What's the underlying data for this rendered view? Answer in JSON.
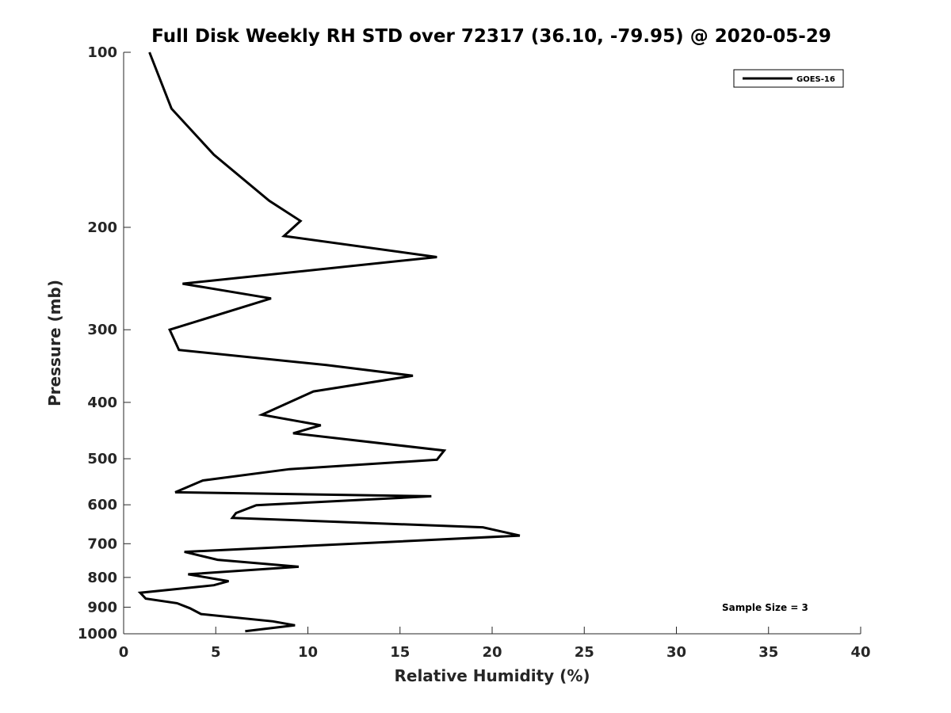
{
  "chart_data": {
    "type": "line",
    "title": "Full Disk Weekly RH STD over 72317 (36.10, -79.95) @ 2020-05-29",
    "xlabel": "Relative Humidity (%)",
    "ylabel": "Pressure (mb)",
    "xlim": [
      0,
      40
    ],
    "ylim": [
      100,
      1000
    ],
    "y_scale": "log",
    "y_reversed": true,
    "x_ticks": [
      "0",
      "5",
      "10",
      "15",
      "20",
      "25",
      "30",
      "35",
      "40"
    ],
    "y_ticks": [
      "100",
      "200",
      "300",
      "400",
      "500",
      "600",
      "700",
      "800",
      "900",
      "1000"
    ],
    "grid": false,
    "legend": {
      "position": "top-right",
      "entries": [
        "GOES-16"
      ]
    },
    "annotation": "Sample Size = 3",
    "series": [
      {
        "name": "GOES-16",
        "color": "#000000",
        "points": [
          [
            1.4,
            100
          ],
          [
            2.6,
            125
          ],
          [
            4.9,
            150
          ],
          [
            7.9,
            180
          ],
          [
            9.6,
            195
          ],
          [
            8.7,
            207
          ],
          [
            17.0,
            225
          ],
          [
            3.2,
            250
          ],
          [
            8.0,
            265
          ],
          [
            2.5,
            300
          ],
          [
            3.0,
            325
          ],
          [
            11.0,
            345
          ],
          [
            15.7,
            360
          ],
          [
            10.3,
            383
          ],
          [
            7.5,
            420
          ],
          [
            10.7,
            438
          ],
          [
            9.2,
            452
          ],
          [
            17.4,
            484
          ],
          [
            17.0,
            502
          ],
          [
            9.0,
            521
          ],
          [
            4.3,
            545
          ],
          [
            2.8,
            571
          ],
          [
            16.7,
            580
          ],
          [
            7.2,
            601
          ],
          [
            6.1,
            620
          ],
          [
            5.9,
            632
          ],
          [
            19.5,
            656
          ],
          [
            21.5,
            678
          ],
          [
            3.3,
            723
          ],
          [
            5.1,
            746
          ],
          [
            9.5,
            767
          ],
          [
            3.5,
            790
          ],
          [
            5.7,
            812
          ],
          [
            4.9,
            825
          ],
          [
            0.9,
            850
          ],
          [
            1.2,
            870
          ],
          [
            2.9,
            886
          ],
          [
            3.6,
            904
          ],
          [
            4.2,
            925
          ],
          [
            8.1,
            952
          ],
          [
            9.3,
            967
          ],
          [
            6.6,
            990
          ]
        ]
      }
    ]
  }
}
